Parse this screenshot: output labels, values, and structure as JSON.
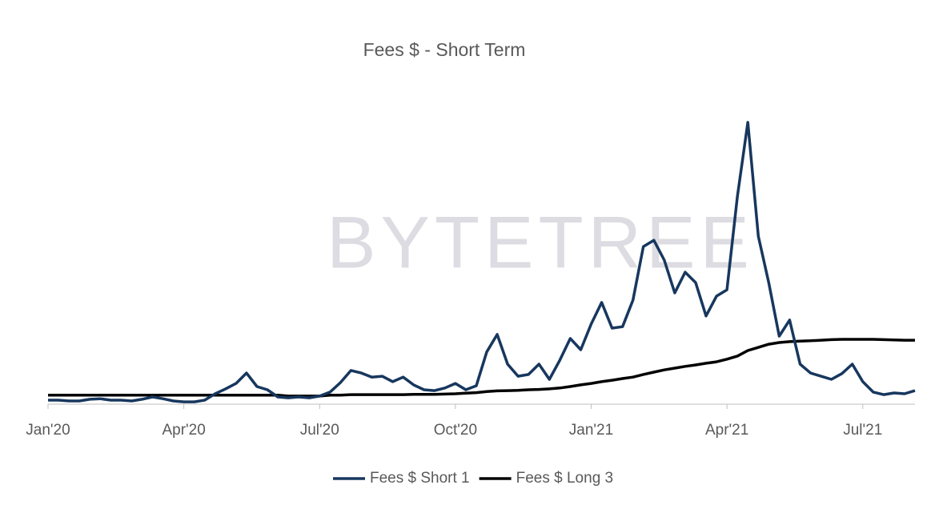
{
  "chart_data": {
    "type": "line",
    "title": "Fees $ - Short Term",
    "watermark": "BYTETREE",
    "categories": [
      "Jan'20",
      null,
      null,
      null,
      null,
      null,
      null,
      null,
      null,
      null,
      null,
      null,
      null,
      "Apr'20",
      null,
      null,
      null,
      null,
      null,
      null,
      null,
      null,
      null,
      null,
      null,
      null,
      "Jul'20",
      null,
      null,
      null,
      null,
      null,
      null,
      null,
      null,
      null,
      null,
      null,
      null,
      "Oct'20",
      null,
      null,
      null,
      null,
      null,
      null,
      null,
      null,
      null,
      null,
      null,
      null,
      "Jan'21",
      null,
      null,
      null,
      null,
      null,
      null,
      null,
      null,
      null,
      null,
      null,
      null,
      "Apr'21",
      null,
      null,
      null,
      null,
      null,
      null,
      null,
      null,
      null,
      null,
      null,
      null,
      "Jul'21",
      null,
      null,
      null,
      null,
      null
    ],
    "series": [
      {
        "name": "Fees $ Short 1",
        "color": "#17375e",
        "values": [
          1.4,
          1.4,
          1.1,
          1.1,
          1.7,
          1.9,
          1.4,
          1.4,
          1.1,
          1.7,
          2.5,
          1.9,
          1.1,
          0.8,
          0.8,
          1.4,
          3.6,
          5.3,
          7.2,
          10.8,
          6.1,
          5.0,
          2.5,
          2.2,
          2.5,
          2.2,
          2.8,
          4.2,
          7.5,
          11.7,
          10.8,
          9.4,
          9.7,
          7.8,
          9.4,
          6.7,
          5.0,
          4.7,
          5.6,
          7.2,
          5.0,
          6.4,
          18.1,
          24.2,
          13.9,
          9.7,
          10.3,
          13.9,
          8.6,
          15.3,
          22.8,
          18.9,
          27.8,
          35.3,
          26.4,
          26.9,
          36.1,
          54.7,
          56.9,
          50.0,
          38.6,
          45.8,
          42.2,
          30.6,
          37.5,
          39.7,
          72.2,
          97.8,
          58.3,
          42.2,
          23.6,
          29.2,
          13.9,
          10.8,
          9.7,
          8.6,
          10.6,
          13.9,
          7.8,
          4.2,
          3.3,
          3.9,
          3.6,
          4.7
        ]
      },
      {
        "name": "Fees $ Long 3",
        "color": "#000000",
        "values": [
          3.1,
          3.1,
          3.1,
          3.1,
          3.1,
          3.1,
          3.1,
          3.1,
          3.1,
          3.1,
          3.1,
          3.1,
          3.1,
          3.1,
          3.1,
          3.1,
          3.1,
          3.1,
          3.1,
          3.1,
          3.1,
          3.1,
          3.1,
          2.8,
          2.8,
          2.8,
          2.8,
          3.1,
          3.1,
          3.3,
          3.3,
          3.3,
          3.3,
          3.3,
          3.3,
          3.4,
          3.4,
          3.4,
          3.5,
          3.6,
          3.8,
          4.0,
          4.4,
          4.6,
          4.7,
          4.8,
          5.0,
          5.1,
          5.3,
          5.6,
          6.1,
          6.7,
          7.2,
          7.8,
          8.3,
          8.9,
          9.4,
          10.3,
          11.1,
          11.9,
          12.5,
          13.1,
          13.6,
          14.2,
          14.7,
          15.6,
          16.7,
          18.6,
          19.7,
          20.8,
          21.4,
          21.7,
          21.9,
          22.0,
          22.2,
          22.4,
          22.5,
          22.5,
          22.5,
          22.5,
          22.4,
          22.3,
          22.2,
          22.2
        ]
      }
    ],
    "ylim": [
      0,
      100
    ],
    "grid": false,
    "legend": "bottom"
  }
}
